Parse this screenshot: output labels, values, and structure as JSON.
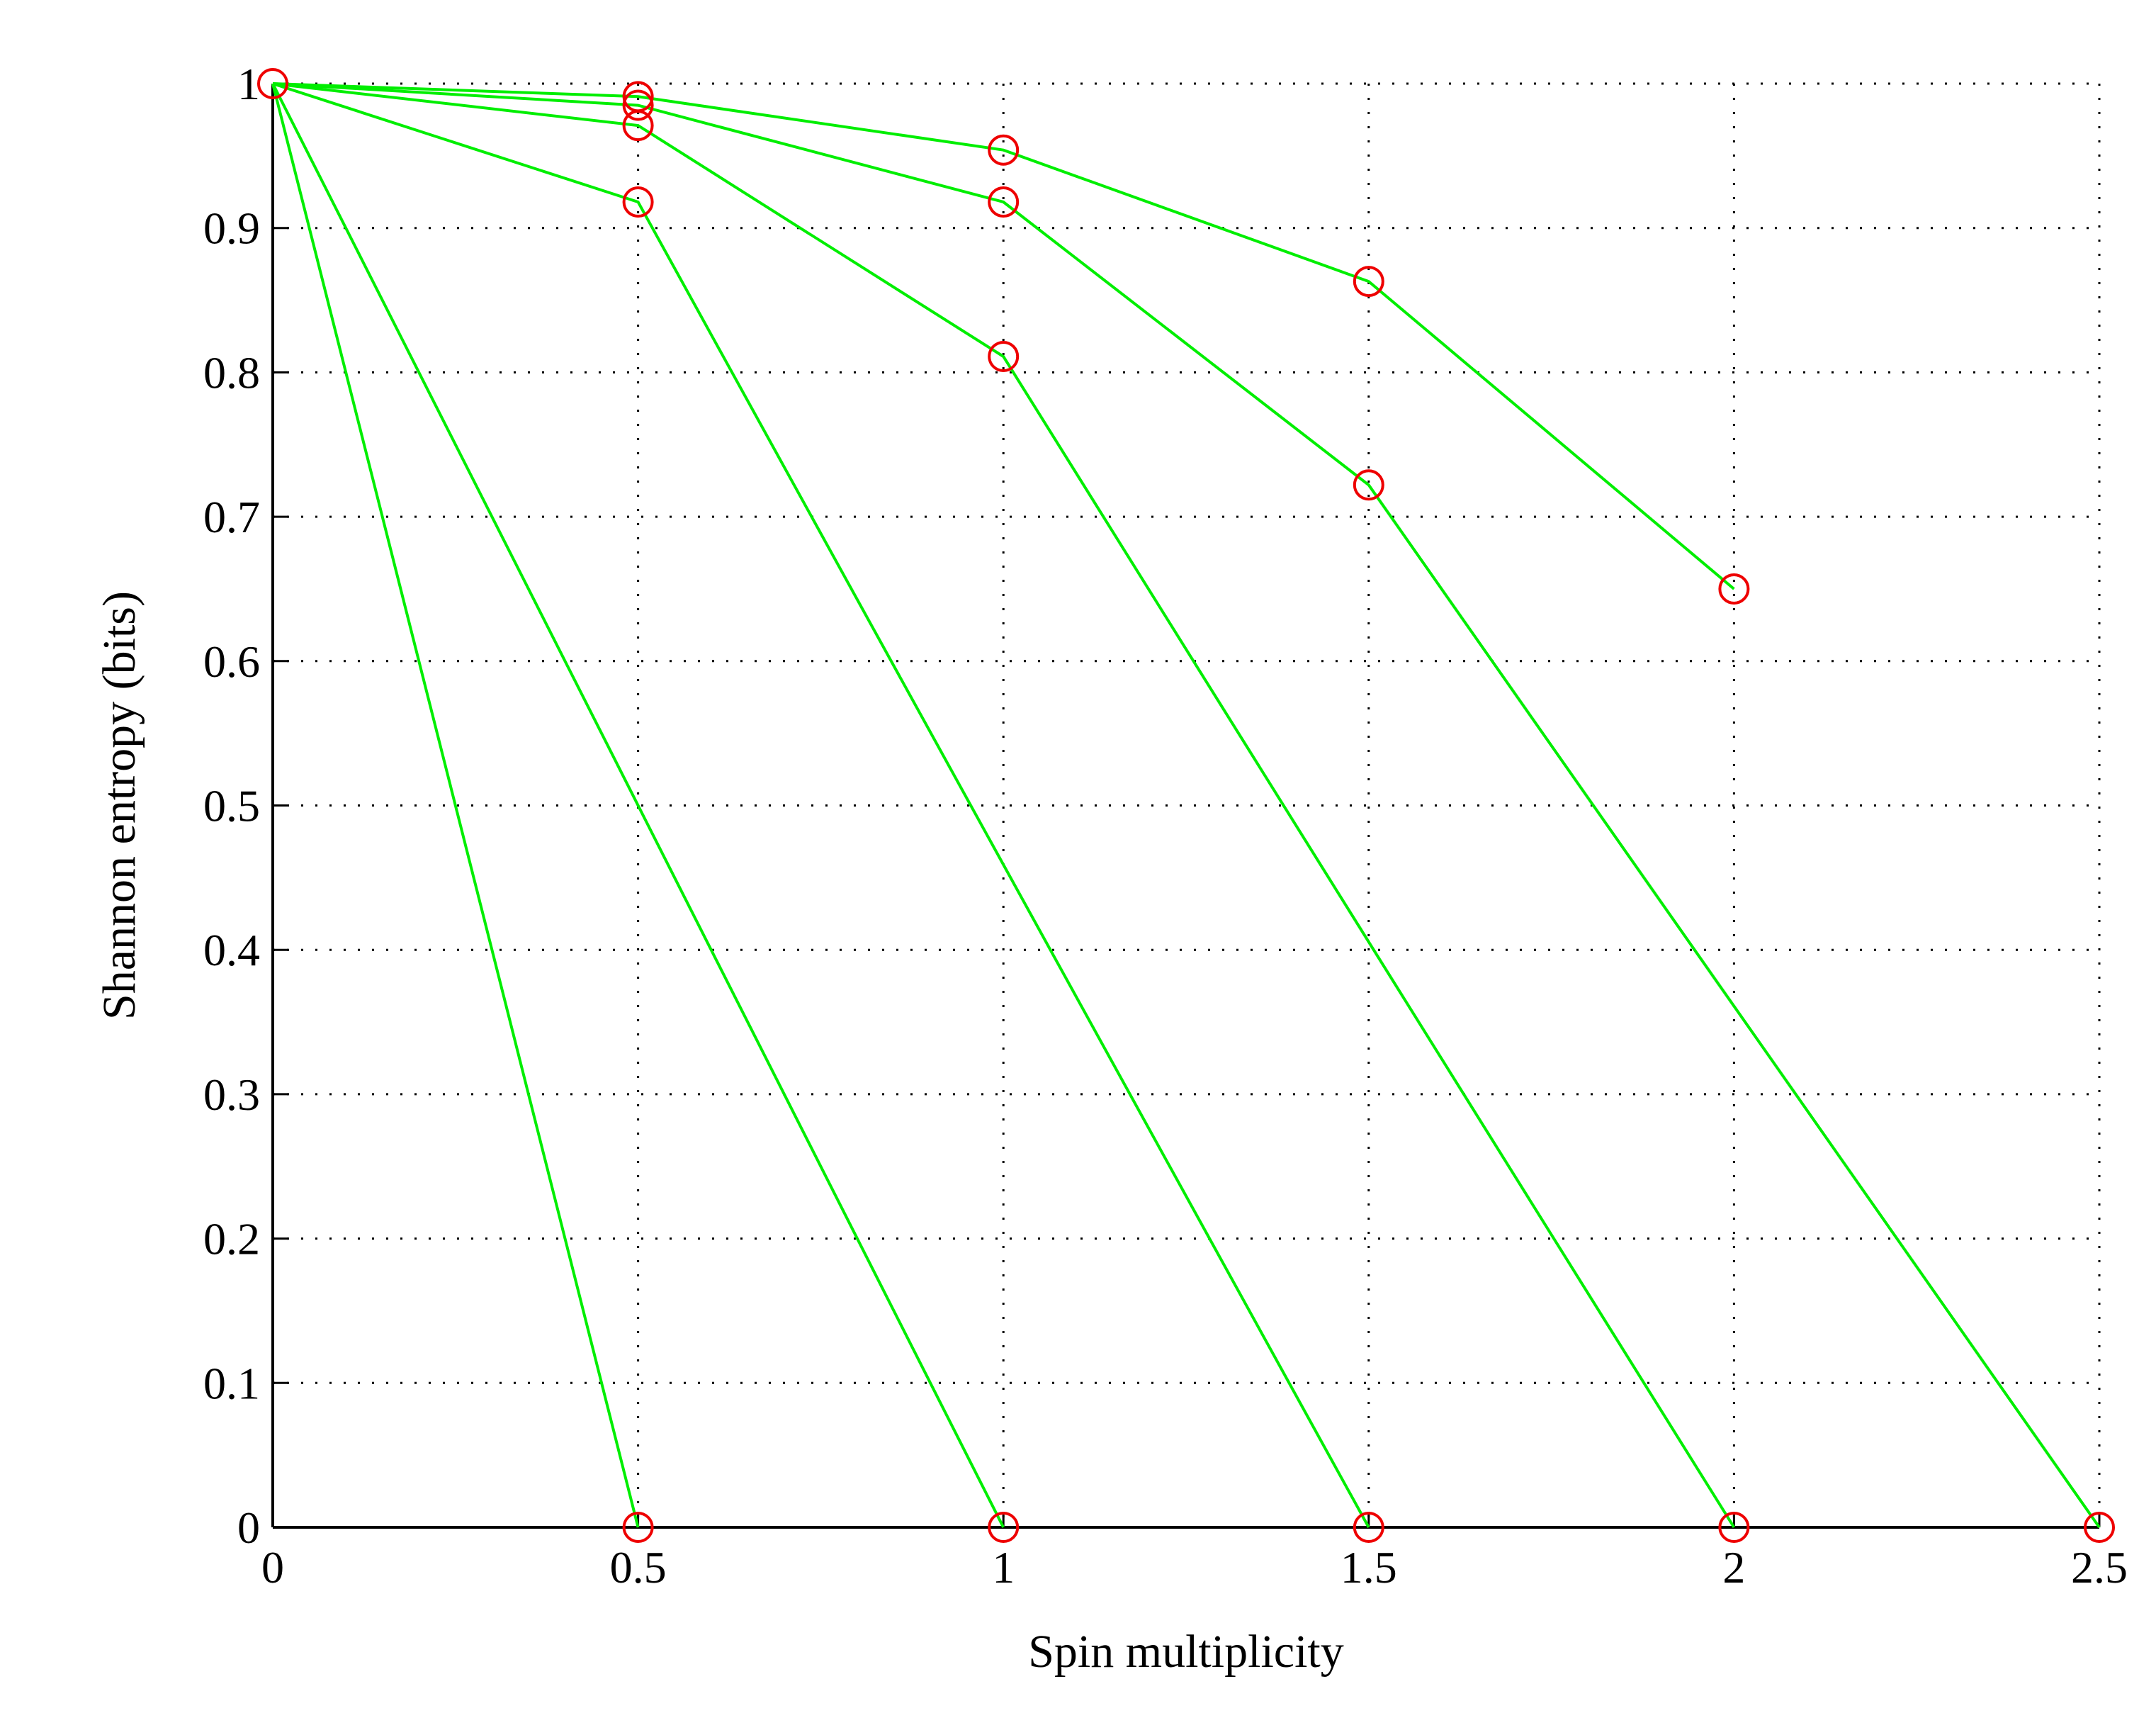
{
  "chart_data": {
    "type": "line",
    "title": "",
    "xlabel": "Spin multiplicity",
    "ylabel": "Shannon entropy (bits)",
    "xlim": [
      0,
      2.5
    ],
    "ylim": [
      0,
      1
    ],
    "grid": true,
    "x_ticks": [
      0,
      0.5,
      1,
      1.5,
      2,
      2.5
    ],
    "x_tick_labels": [
      "0",
      "0.5",
      "1",
      "1.5",
      "2",
      "2.5"
    ],
    "y_ticks": [
      0,
      0.1,
      0.2,
      0.3,
      0.4,
      0.5,
      0.6,
      0.7,
      0.8,
      0.9,
      1
    ],
    "y_tick_labels": [
      "0",
      "0.1",
      "0.2",
      "0.3",
      "0.4",
      "0.5",
      "0.6",
      "0.7",
      "0.8",
      "0.9",
      "1"
    ],
    "line_color": "#00ee00",
    "marker_color": "#ee0000",
    "marker": "circle-open",
    "series": [
      {
        "x": [
          0,
          1
        ],
        "y": [
          1,
          0
        ]
      },
      {
        "x": [
          0,
          0.5,
          1.5
        ],
        "y": [
          1,
          0.918,
          0
        ]
      },
      {
        "x": [
          0,
          0.5,
          1,
          2
        ],
        "y": [
          1,
          0.971,
          0.811,
          0
        ]
      },
      {
        "x": [
          0,
          0.5,
          1,
          1.5,
          2.5
        ],
        "y": [
          1,
          0.985,
          0.918,
          0.722,
          0
        ]
      },
      {
        "x": [
          0,
          0.5,
          1,
          1.5,
          2
        ],
        "y": [
          1,
          0.991,
          0.954,
          0.863,
          0.65
        ]
      },
      {
        "x": [
          0,
          0.5
        ],
        "y": [
          1,
          0
        ]
      }
    ]
  }
}
